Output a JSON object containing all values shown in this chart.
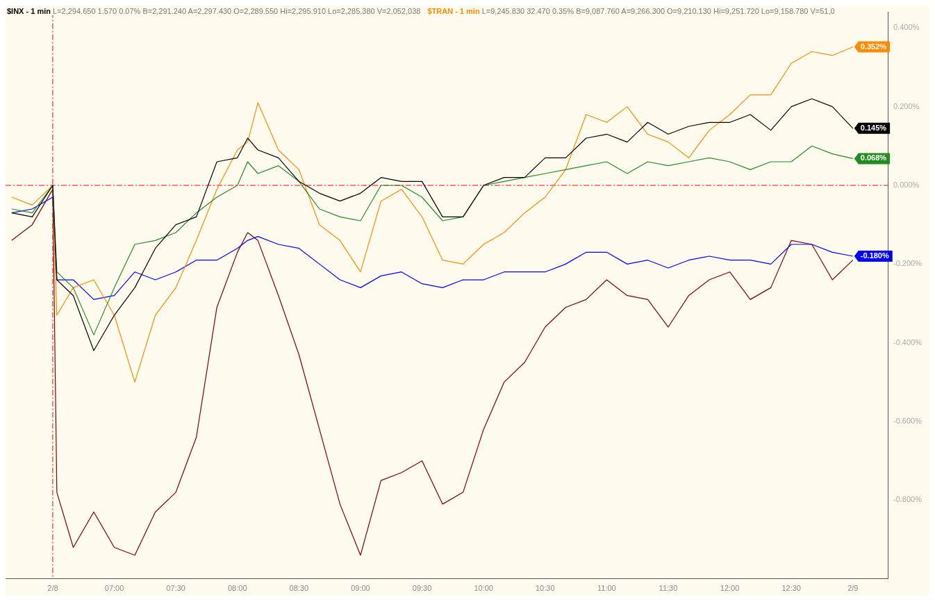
{
  "chart_data": {
    "type": "line",
    "annotations": [
      "L=2,294.650 1.570 0.07% B=2,291.240 A=2,297.430 O=2,289.550 Hi=2,295.910 Lo=2,285.380 V=2,052,038",
      "L=9,245.830 32.470 0.35% B=9,087.760 A=9,266.300 O=9,210.130 Hi=9,251.720 Lo=9,158.780 V=51,0"
    ],
    "x": [
      "--02-08T06:10",
      "--02-08T06:20",
      "--02-08T06:30",
      "--02-08T06:32",
      "--02-08T06:40",
      "--02-08T06:50",
      "--02-08T07:00",
      "--02-08T07:10",
      "--02-08T07:20",
      "--02-08T07:30",
      "--02-08T07:40",
      "--02-08T07:50",
      "--02-08T08:00",
      "--02-08T08:05",
      "--02-08T08:10",
      "--02-08T08:20",
      "--02-08T08:30",
      "--02-08T08:40",
      "--02-08T08:50",
      "--02-08T09:00",
      "--02-08T09:10",
      "--02-08T09:20",
      "--02-08T09:30",
      "--02-08T09:40",
      "--02-08T09:50",
      "--02-08T10:00",
      "--02-08T10:10",
      "--02-08T10:20",
      "--02-08T10:30",
      "--02-08T10:40",
      "--02-08T10:50",
      "--02-08T11:00",
      "--02-08T11:10",
      "--02-08T11:20",
      "--02-08T11:30",
      "--02-08T11:40",
      "--02-08T11:50",
      "--02-08T12:00",
      "--02-08T12:10",
      "--02-08T12:20",
      "--02-08T12:30",
      "--02-08T12:40",
      "--02-08T12:50",
      "--02-08T13:00"
    ],
    "series": [
      {
        "name": "$INX - 1 min",
        "color": "#000000",
        "values": [
          -0.07,
          -0.08,
          0,
          -0.24,
          -0.28,
          -0.42,
          -0.33,
          -0.26,
          -0.16,
          -0.1,
          -0.08,
          0.06,
          0.07,
          0.12,
          0.09,
          0.07,
          0.01,
          -0.02,
          -0.04,
          -0.02,
          0.02,
          0.01,
          0.01,
          -0.08,
          -0.08,
          0,
          0.02,
          0.02,
          0.07,
          0.07,
          0.12,
          0.13,
          0.11,
          0.16,
          0.13,
          0.15,
          0.16,
          0.16,
          0.18,
          0.14,
          0.2,
          0.22,
          0.2,
          0.145
        ],
        "value_labels": [
          null,
          null,
          null,
          null,
          null,
          null,
          null,
          null,
          null,
          null,
          null,
          null,
          null,
          null,
          null,
          null,
          null,
          null,
          null,
          null,
          null,
          null,
          null,
          null,
          null,
          null,
          null,
          null,
          null,
          null,
          null,
          null,
          null,
          null,
          null,
          null,
          null,
          null,
          null,
          null,
          null,
          null,
          null,
          "0.145%"
        ]
      },
      {
        "color": "#228b22",
        "values": [
          -0.06,
          -0.07,
          0,
          -0.22,
          -0.26,
          -0.38,
          -0.26,
          -0.15,
          -0.14,
          -0.12,
          -0.07,
          -0.03,
          0,
          0.06,
          0.03,
          0.05,
          0.01,
          -0.06,
          -0.08,
          -0.09,
          0,
          0,
          -0.03,
          -0.09,
          -0.08,
          0,
          0.01,
          0.02,
          0.03,
          0.04,
          0.05,
          0.06,
          0.03,
          0.06,
          0.05,
          0.06,
          0.07,
          0.06,
          0.04,
          0.06,
          0.06,
          0.1,
          0.08,
          0.068
        ],
        "value_labels": [
          null,
          null,
          null,
          null,
          null,
          null,
          null,
          null,
          null,
          null,
          null,
          null,
          null,
          null,
          null,
          null,
          null,
          null,
          null,
          null,
          null,
          null,
          null,
          null,
          null,
          null,
          null,
          null,
          null,
          null,
          null,
          null,
          null,
          null,
          null,
          null,
          null,
          null,
          null,
          null,
          null,
          null,
          null,
          "0.068%"
        ]
      },
      {
        "name": "$TRAN - 1 min",
        "color": "#ff8c00",
        "values": [
          -0.03,
          -0.05,
          0,
          -0.33,
          -0.26,
          -0.24,
          -0.33,
          -0.5,
          -0.33,
          -0.26,
          -0.14,
          -0.01,
          0.09,
          0.11,
          0.21,
          0.09,
          0.04,
          -0.1,
          -0.14,
          -0.22,
          -0.04,
          -0.01,
          -0.08,
          -0.19,
          -0.2,
          -0.15,
          -0.12,
          -0.07,
          -0.03,
          0.04,
          0.18,
          0.16,
          0.2,
          0.13,
          0.11,
          0.07,
          0.14,
          0.18,
          0.23,
          0.23,
          0.31,
          0.34,
          0.33,
          0.352
        ],
        "value_labels": [
          null,
          null,
          null,
          null,
          null,
          null,
          null,
          null,
          null,
          null,
          null,
          null,
          null,
          null,
          null,
          null,
          null,
          null,
          null,
          null,
          null,
          null,
          null,
          null,
          null,
          null,
          null,
          null,
          null,
          null,
          null,
          null,
          null,
          null,
          null,
          null,
          null,
          null,
          null,
          null,
          null,
          null,
          null,
          "0.352%"
        ]
      },
      {
        "color": "#0000ff",
        "values": [
          -0.07,
          -0.06,
          -0.03,
          -0.24,
          -0.24,
          -0.29,
          -0.28,
          -0.22,
          -0.24,
          -0.22,
          -0.19,
          -0.19,
          -0.16,
          -0.14,
          -0.13,
          -0.15,
          -0.16,
          -0.2,
          -0.24,
          -0.26,
          -0.23,
          -0.22,
          -0.25,
          -0.26,
          -0.24,
          -0.24,
          -0.22,
          -0.22,
          -0.22,
          -0.2,
          -0.17,
          -0.17,
          -0.2,
          -0.19,
          -0.21,
          -0.19,
          -0.18,
          -0.19,
          -0.19,
          -0.2,
          -0.15,
          -0.15,
          -0.17,
          -0.18
        ],
        "value_labels": [
          null,
          null,
          null,
          null,
          null,
          null,
          null,
          null,
          null,
          null,
          null,
          null,
          null,
          null,
          null,
          null,
          null,
          null,
          null,
          null,
          null,
          null,
          null,
          null,
          null,
          null,
          null,
          null,
          null,
          null,
          null,
          null,
          null,
          null,
          null,
          null,
          null,
          null,
          null,
          null,
          null,
          null,
          null,
          "-0.180%"
        ]
      },
      {
        "color": "#800000",
        "values": [
          -0.14,
          -0.1,
          -0.01,
          -0.78,
          -0.92,
          -0.83,
          -0.92,
          -0.94,
          -0.83,
          -0.78,
          -0.64,
          -0.31,
          -0.17,
          -0.12,
          -0.14,
          -0.28,
          -0.43,
          -0.62,
          -0.81,
          -0.94,
          -0.75,
          -0.73,
          -0.7,
          -0.81,
          -0.78,
          -0.62,
          -0.5,
          -0.45,
          -0.36,
          -0.31,
          -0.29,
          -0.24,
          -0.28,
          -0.29,
          -0.36,
          -0.28,
          -0.24,
          -0.22,
          -0.29,
          -0.26,
          -0.14,
          -0.15,
          -0.24,
          -0.19
        ]
      }
    ],
    "xlim": [
      "--02-08T06:07",
      "--02-08T13:17"
    ],
    "xticks": [
      {
        "value": "--02-08T06:30",
        "label": "2/8"
      },
      {
        "value": "--02-08T07:00",
        "label": "07:00"
      },
      {
        "value": "--02-08T07:30",
        "label": "07:30"
      },
      {
        "value": "--02-08T08:00",
        "label": "08:00"
      },
      {
        "value": "--02-08T08:30",
        "label": "08:30"
      },
      {
        "value": "--02-08T09:00",
        "label": "09:00"
      },
      {
        "value": "--02-08T09:30",
        "label": "09:30"
      },
      {
        "value": "--02-08T10:00",
        "label": "10:00"
      },
      {
        "value": "--02-08T10:30",
        "label": "10:30"
      },
      {
        "value": "--02-08T11:00",
        "label": "11:00"
      },
      {
        "value": "--02-08T11:30",
        "label": "11:30"
      },
      {
        "value": "--02-08T12:00",
        "label": "12:00"
      },
      {
        "value": "--02-08T12:30",
        "label": "12:30"
      },
      {
        "value": "--02-08T13:00",
        "label": "2/9"
      }
    ],
    "ylim": [
      -1.0,
      0.44
    ],
    "yticks": [
      {
        "value": 0.4,
        "label": "0.400%"
      },
      {
        "value": 0.2,
        "label": "0.200%"
      },
      {
        "value": 0,
        "label": "0.000%"
      },
      {
        "value": -0.2,
        "label": "-0.200%"
      },
      {
        "value": -0.4,
        "label": "-0.400%"
      },
      {
        "value": -0.6,
        "label": "-0.600%"
      },
      {
        "value": -0.8,
        "label": "-0.800%"
      }
    ],
    "ref_lines": [
      {
        "axis": "y",
        "value": 0,
        "color": "#ff0000",
        "line_style": "dashed"
      },
      {
        "axis": "x",
        "value": "--02-08T06:30",
        "color": "#ff0000",
        "line_style": "dashed"
      }
    ],
    "grid": false,
    "legend": "top left",
    "marker": "none",
    "line_style": "solid"
  }
}
